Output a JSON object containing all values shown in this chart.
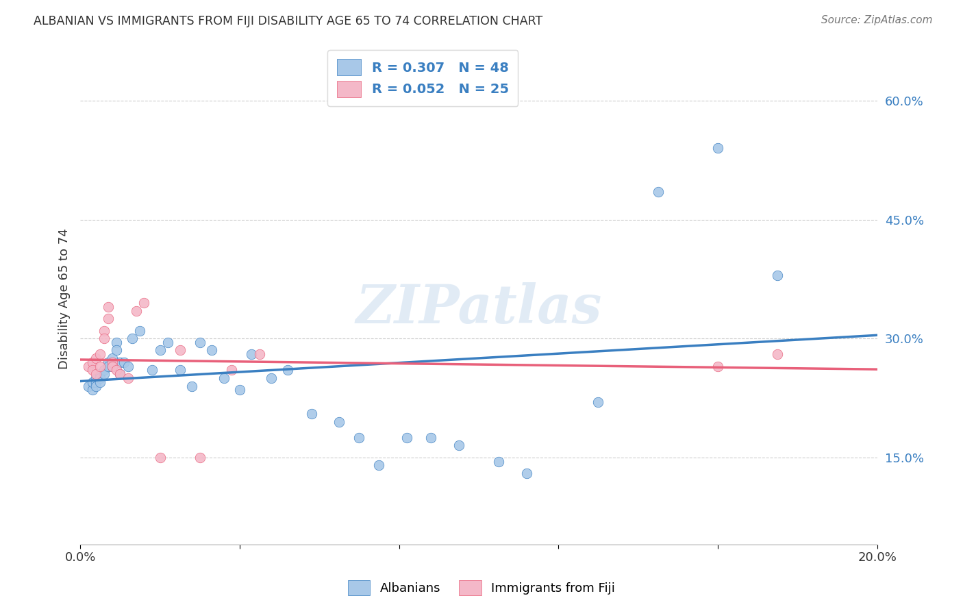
{
  "title": "ALBANIAN VS IMMIGRANTS FROM FIJI DISABILITY AGE 65 TO 74 CORRELATION CHART",
  "source": "Source: ZipAtlas.com",
  "ylabel": "Disability Age 65 to 74",
  "y_ticks": [
    0.15,
    0.3,
    0.45,
    0.6
  ],
  "y_tick_labels": [
    "15.0%",
    "30.0%",
    "45.0%",
    "60.0%"
  ],
  "x_range": [
    0.0,
    0.2
  ],
  "y_range": [
    0.04,
    0.66
  ],
  "albanian_R": 0.307,
  "albanian_N": 48,
  "fiji_R": 0.052,
  "fiji_N": 25,
  "albanian_color": "#a8c8e8",
  "fiji_color": "#f4b8c8",
  "albanian_line_color": "#3a7fc1",
  "fiji_line_color": "#e8607a",
  "legend_text_color": "#3a7fc1",
  "albanian_x": [
    0.002,
    0.003,
    0.003,
    0.004,
    0.004,
    0.004,
    0.005,
    0.005,
    0.005,
    0.006,
    0.006,
    0.007,
    0.007,
    0.008,
    0.008,
    0.009,
    0.009,
    0.01,
    0.01,
    0.011,
    0.012,
    0.013,
    0.015,
    0.018,
    0.02,
    0.022,
    0.025,
    0.028,
    0.03,
    0.033,
    0.036,
    0.04,
    0.043,
    0.048,
    0.052,
    0.058,
    0.065,
    0.07,
    0.075,
    0.082,
    0.088,
    0.095,
    0.105,
    0.112,
    0.13,
    0.145,
    0.16,
    0.175
  ],
  "albanian_y": [
    0.24,
    0.235,
    0.245,
    0.25,
    0.245,
    0.24,
    0.255,
    0.25,
    0.245,
    0.26,
    0.255,
    0.27,
    0.265,
    0.275,
    0.265,
    0.295,
    0.285,
    0.27,
    0.255,
    0.27,
    0.265,
    0.3,
    0.31,
    0.26,
    0.285,
    0.295,
    0.26,
    0.24,
    0.295,
    0.285,
    0.25,
    0.235,
    0.28,
    0.25,
    0.26,
    0.205,
    0.195,
    0.175,
    0.14,
    0.175,
    0.175,
    0.165,
    0.145,
    0.13,
    0.22,
    0.485,
    0.54,
    0.38
  ],
  "fiji_x": [
    0.002,
    0.003,
    0.003,
    0.004,
    0.004,
    0.005,
    0.005,
    0.006,
    0.006,
    0.007,
    0.007,
    0.008,
    0.008,
    0.009,
    0.01,
    0.012,
    0.014,
    0.016,
    0.02,
    0.025,
    0.03,
    0.038,
    0.045,
    0.16,
    0.175
  ],
  "fiji_y": [
    0.265,
    0.27,
    0.26,
    0.275,
    0.255,
    0.28,
    0.265,
    0.31,
    0.3,
    0.34,
    0.325,
    0.27,
    0.265,
    0.26,
    0.255,
    0.25,
    0.335,
    0.345,
    0.15,
    0.285,
    0.15,
    0.26,
    0.28,
    0.265,
    0.28
  ],
  "watermark": "ZIPatlas",
  "background_color": "#ffffff",
  "grid_color": "#cccccc"
}
